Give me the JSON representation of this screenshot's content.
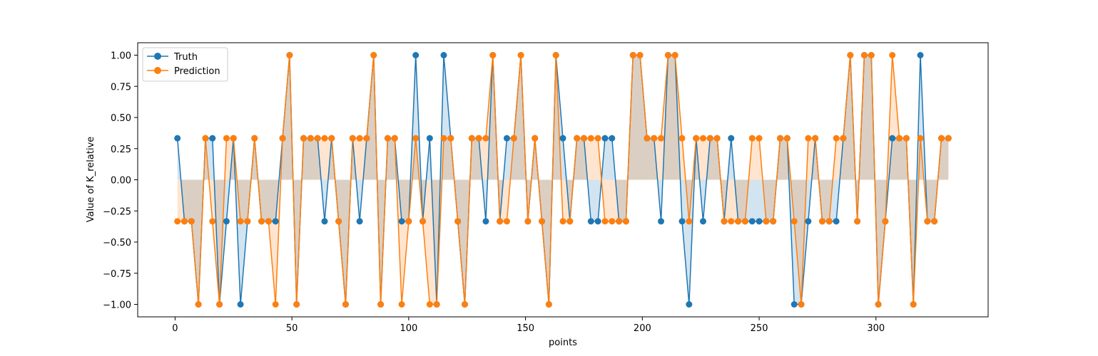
{
  "chart_data": {
    "type": "line",
    "title": "",
    "xlabel": "points",
    "ylabel": "Value of K_relative",
    "xlim": [
      -16,
      348
    ],
    "ylim": [
      -1.1,
      1.1
    ],
    "xticks": [
      0,
      50,
      100,
      150,
      200,
      250,
      300
    ],
    "yticks": [
      -1.0,
      -0.75,
      -0.5,
      -0.25,
      0.0,
      0.25,
      0.5,
      0.75,
      1.0
    ],
    "ytick_labels": [
      "−1.00",
      "−0.75",
      "−0.50",
      "−0.25",
      "0.00",
      "0.25",
      "0.50",
      "0.75",
      "1.00"
    ],
    "grid": false,
    "legend_position": "upper left",
    "fill_to_zero": true,
    "x": [
      1,
      4,
      7,
      10,
      13,
      16,
      19,
      22,
      25,
      28,
      31,
      34,
      37,
      40,
      43,
      46,
      49,
      52,
      55,
      58,
      61,
      64,
      67,
      70,
      73,
      76,
      79,
      82,
      85,
      88,
      91,
      94,
      97,
      100,
      103,
      106,
      109,
      112,
      115,
      118,
      121,
      124,
      127,
      130,
      133,
      136,
      139,
      142,
      145,
      148,
      151,
      154,
      157,
      160,
      163,
      166,
      169,
      172,
      175,
      178,
      181,
      184,
      187,
      190,
      193,
      196,
      199,
      202,
      205,
      208,
      211,
      214,
      217,
      220,
      223,
      226,
      229,
      232,
      235,
      238,
      241,
      244,
      247,
      250,
      253,
      256,
      259,
      262,
      265,
      268,
      271,
      274,
      277,
      280,
      283,
      286,
      289,
      292,
      295,
      298,
      301,
      304,
      307,
      310,
      313,
      316,
      319,
      322,
      325,
      328,
      331
    ],
    "series": [
      {
        "name": "Truth",
        "color": "#1f77b4",
        "values": [
          0.3333,
          -0.3333,
          -0.3333,
          -1,
          0.3333,
          0.3333,
          -1,
          -0.3333,
          0.3333,
          -1,
          -0.3333,
          0.3333,
          -0.3333,
          -0.3333,
          -0.3333,
          0.3333,
          1,
          -1,
          0.3333,
          0.3333,
          0.3333,
          -0.3333,
          0.3333,
          -0.3333,
          -1,
          0.3333,
          -0.3333,
          0.3333,
          1,
          -1,
          0.3333,
          0.3333,
          -0.3333,
          -0.3333,
          1,
          -0.3333,
          0.3333,
          -1,
          1,
          0.3333,
          -0.3333,
          -1,
          0.3333,
          0.3333,
          -0.3333,
          1,
          -0.3333,
          0.3333,
          0.3333,
          1,
          -0.3333,
          0.3333,
          -0.3333,
          -1,
          1,
          0.3333,
          -0.3333,
          0.3333,
          0.3333,
          -0.3333,
          -0.3333,
          0.3333,
          0.3333,
          -0.3333,
          -0.3333,
          1,
          1,
          0.3333,
          0.3333,
          -0.3333,
          1,
          1,
          -0.3333,
          -1,
          0.3333,
          -0.3333,
          0.3333,
          0.3333,
          -0.3333,
          0.3333,
          -0.3333,
          -0.3333,
          -0.3333,
          -0.3333,
          -0.3333,
          -0.3333,
          0.3333,
          0.3333,
          -1,
          -1,
          -0.3333,
          0.3333,
          -0.3333,
          -0.3333,
          -0.3333,
          0.3333,
          1,
          -0.3333,
          1,
          1,
          -1,
          -0.3333,
          0.3333,
          0.3333,
          0.3333,
          -1,
          1,
          -0.3333,
          -0.3333,
          0.3333,
          0.3333
        ]
      },
      {
        "name": "Prediction",
        "color": "#ff7f0e",
        "values": [
          -0.3333,
          -0.3333,
          -0.3333,
          -1,
          0.3333,
          -0.3333,
          -1,
          0.3333,
          0.3333,
          -0.3333,
          -0.3333,
          0.3333,
          -0.3333,
          -0.3333,
          -1,
          0.3333,
          1,
          -1,
          0.3333,
          0.3333,
          0.3333,
          0.3333,
          0.3333,
          -0.3333,
          -1,
          0.3333,
          0.3333,
          0.3333,
          1,
          -1,
          0.3333,
          0.3333,
          -1,
          -0.3333,
          0.3333,
          -0.3333,
          -1,
          -1,
          0.3333,
          0.3333,
          -0.3333,
          -1,
          0.3333,
          0.3333,
          0.3333,
          1,
          -0.3333,
          -0.3333,
          0.3333,
          1,
          -0.3333,
          0.3333,
          -0.3333,
          -1,
          1,
          -0.3333,
          -0.3333,
          0.3333,
          0.3333,
          0.3333,
          0.3333,
          -0.3333,
          -0.3333,
          -0.3333,
          -0.3333,
          1,
          1,
          0.3333,
          0.3333,
          0.3333,
          1,
          1,
          0.3333,
          -0.3333,
          0.3333,
          0.3333,
          0.3333,
          0.3333,
          -0.3333,
          -0.3333,
          -0.3333,
          -0.3333,
          0.3333,
          0.3333,
          -0.3333,
          -0.3333,
          0.3333,
          0.3333,
          -0.3333,
          -1,
          0.3333,
          0.3333,
          -0.3333,
          -0.3333,
          0.3333,
          0.3333,
          1,
          -0.3333,
          1,
          1,
          -1,
          -0.3333,
          1,
          0.3333,
          0.3333,
          -1,
          0.3333,
          -0.3333,
          -0.3333,
          0.3333,
          0.3333
        ]
      }
    ]
  }
}
